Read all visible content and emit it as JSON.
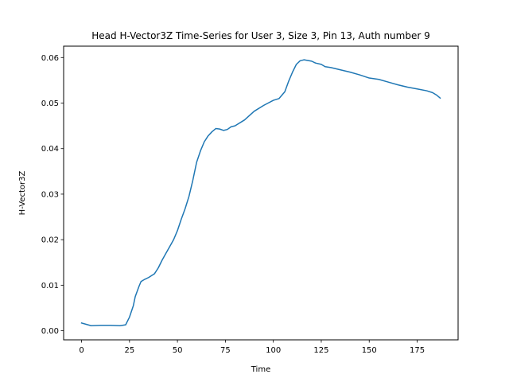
{
  "chart_data": {
    "type": "line",
    "title": "Head H-Vector3Z Time-Series for User 3, Size 3, Pin 13, Auth number 9",
    "xlabel": "Time",
    "ylabel": "H-Vector3Z",
    "xlim": [
      -9.35,
      196.35
    ],
    "ylim": [
      -0.002,
      0.0625
    ],
    "x_ticks": [
      0,
      25,
      50,
      75,
      100,
      125,
      150,
      175
    ],
    "y_ticks": [
      0.0,
      0.01,
      0.02,
      0.03,
      0.04,
      0.05,
      0.06
    ],
    "y_tick_labels": [
      "0.00",
      "0.01",
      "0.02",
      "0.03",
      "0.04",
      "0.05",
      "0.06"
    ],
    "grid": false,
    "legend": "none",
    "series": [
      {
        "color": "#1f77b4",
        "x": [
          0,
          5,
          10,
          15,
          20,
          23,
          25,
          27,
          28,
          30,
          31,
          33,
          35,
          38,
          40,
          42,
          44,
          46,
          48,
          50,
          52,
          54,
          56,
          58,
          60,
          62,
          64,
          66,
          68,
          70,
          72,
          74,
          76,
          78,
          80,
          85,
          90,
          95,
          100,
          103,
          106,
          108,
          110,
          112,
          114,
          116,
          120,
          122,
          125,
          127,
          130,
          135,
          140,
          145,
          150,
          155,
          160,
          165,
          170,
          175,
          180,
          183,
          185,
          187
        ],
        "values": [
          0.0017,
          0.0011,
          0.0012,
          0.0012,
          0.0011,
          0.0013,
          0.003,
          0.0055,
          0.0075,
          0.0098,
          0.0108,
          0.0113,
          0.0117,
          0.0125,
          0.0138,
          0.0155,
          0.017,
          0.0185,
          0.02,
          0.022,
          0.0245,
          0.0268,
          0.0295,
          0.033,
          0.037,
          0.0395,
          0.0415,
          0.0428,
          0.0437,
          0.0444,
          0.0443,
          0.044,
          0.0442,
          0.0448,
          0.045,
          0.0463,
          0.0482,
          0.0495,
          0.0506,
          0.051,
          0.0525,
          0.0548,
          0.0568,
          0.0585,
          0.0593,
          0.0595,
          0.0592,
          0.0588,
          0.0585,
          0.058,
          0.0578,
          0.0573,
          0.0568,
          0.0562,
          0.0555,
          0.0552,
          0.0546,
          0.054,
          0.0535,
          0.0531,
          0.0527,
          0.0523,
          0.0518,
          0.0511
        ]
      }
    ]
  }
}
